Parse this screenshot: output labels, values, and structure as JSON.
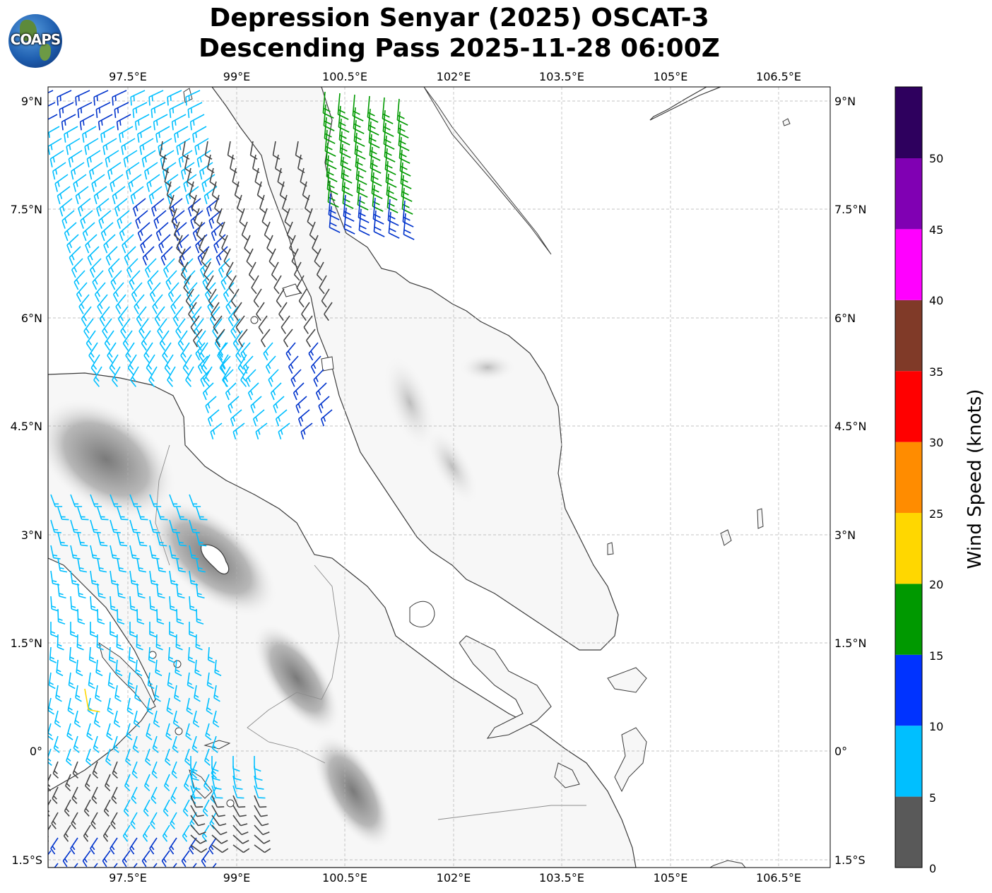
{
  "title": {
    "line1": "Depression Senyar (2025) OSCAT-3",
    "line2": "Descending Pass 2025-11-28 06:00Z"
  },
  "logo": {
    "text": "COAPS",
    "icon": "globe-logo-icon"
  },
  "map": {
    "lon_range": [
      96.0,
      106.8
    ],
    "lat_range": [
      -1.6,
      9.2
    ],
    "lon_ticks": [
      "97.5°E",
      "99°E",
      "100.5°E",
      "102°E",
      "103.5°E",
      "105°E",
      "106.5°E"
    ],
    "lat_ticks": [
      "9°N",
      "7.5°N",
      "6°N",
      "4.5°N",
      "3°N",
      "1.5°N",
      "0°",
      "1.5°S"
    ],
    "gridlines": true
  },
  "colorbar": {
    "label": "Wind Speed (knots)",
    "ticks": [
      "0",
      "5",
      "10",
      "15",
      "20",
      "25",
      "30",
      "35",
      "40",
      "45",
      "50"
    ],
    "colors": [
      "#595959",
      "#00bfff",
      "#0033ff",
      "#009900",
      "#ffd700",
      "#ff8c00",
      "#ff0000",
      "#803a28",
      "#ff00ff",
      "#8000b3",
      "#2e005e"
    ]
  }
}
